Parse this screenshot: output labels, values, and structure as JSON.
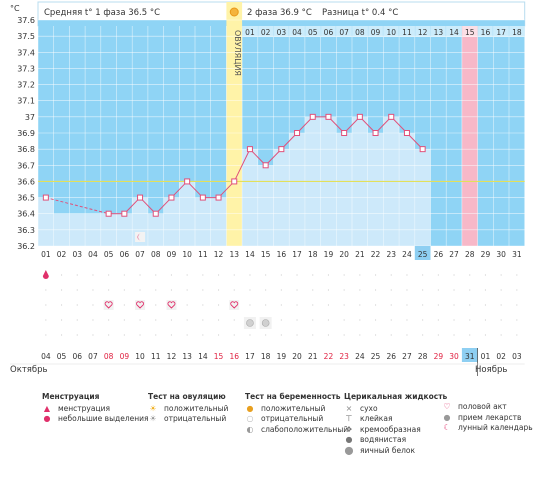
{
  "chart_data": {
    "type": "line",
    "title": "",
    "ylabel": "°C",
    "ylim": [
      36.2,
      37.6
    ],
    "yticks": [
      "36.2",
      "36.3",
      "36.4",
      "36.5",
      "36.6",
      "36.7",
      "36.8",
      "36.9",
      "37",
      "37.1",
      "37.2",
      "37.3",
      "37.4",
      "37.5",
      "37.6"
    ],
    "phase1_avg_label": "Средняя t° 1 фаза 36.5 °C",
    "phase2_label": "2 фаза 36.9 °C",
    "diff_label": "Разница t° 0.4 °C",
    "ovulation_label": "ОВУЛЯЦИЯ",
    "coverline": 36.6,
    "cycle_days_top": [
      "01",
      "02",
      "03",
      "04",
      "05",
      "06",
      "07",
      "08",
      "09",
      "10",
      "11",
      "12",
      "13",
      "14",
      "15",
      "16",
      "17",
      "18"
    ],
    "cycle_days": [
      "01",
      "02",
      "03",
      "04",
      "05",
      "06",
      "07",
      "08",
      "09",
      "10",
      "11",
      "12",
      "13",
      "14",
      "15",
      "16",
      "17",
      "18",
      "19",
      "20",
      "21",
      "22",
      "23",
      "24",
      "25",
      "26",
      "27",
      "28",
      "29",
      "30",
      "31"
    ],
    "dates": [
      "04",
      "05",
      "06",
      "07",
      "08",
      "09",
      "10",
      "11",
      "12",
      "13",
      "14",
      "15",
      "16",
      "17",
      "18",
      "19",
      "20",
      "21",
      "22",
      "23",
      "24",
      "25",
      "26",
      "27",
      "28",
      "29",
      "30",
      "31",
      "01",
      "02",
      "03"
    ],
    "weekend_dates": [
      "08",
      "09",
      "15",
      "16",
      "22",
      "23",
      "29",
      "30"
    ],
    "month_start": "Октябрь",
    "month_end": "Ноябрь",
    "temperatures": [
      36.5,
      null,
      null,
      null,
      36.4,
      36.4,
      36.5,
      36.4,
      36.5,
      36.6,
      36.5,
      36.5,
      36.6,
      36.8,
      36.7,
      36.8,
      36.9,
      37.0,
      37.0,
      36.9,
      37.0,
      36.9,
      37.0,
      36.9,
      36.8,
      null,
      null,
      null,
      null,
      null,
      null
    ],
    "today_day": 25,
    "expected_period_day": 28,
    "ovulation_day": 13,
    "bar_range_days": [
      1,
      25
    ],
    "menstruation_days": [
      1
    ],
    "intercourse_days": [
      5,
      7,
      9,
      13
    ],
    "ovulation_test_negative_days": [
      14,
      15
    ],
    "lunar_calendar_days": [
      7
    ]
  },
  "legend": {
    "menstruation": {
      "title": "Менструация",
      "items": [
        "менструация",
        "небольшие выделения"
      ]
    },
    "ovulation_test": {
      "title": "Тест на овуляцию",
      "items": [
        "положительный",
        "отрицательный"
      ]
    },
    "pregnancy_test": {
      "title": "Тест на беременность",
      "items": [
        "положительный",
        "отрицательный",
        "слабоположительный"
      ]
    },
    "cervical_fluid": {
      "title": "Церикальная жидкость",
      "items": [
        "сухо",
        "клейкая",
        "кремообразная",
        "водянистая",
        "яичный белок"
      ]
    },
    "other": {
      "items": [
        "половой акт",
        "прием лекарств",
        "лунный календарь"
      ]
    }
  },
  "colors": {
    "sky": "#8fd4f5",
    "bar": "#cde9fa",
    "ovulation": "#fff3a8",
    "expected": "#f7b8c8",
    "line": "#e0507a",
    "coverline": "#e3e05a",
    "today": "#8ecff2",
    "weekend": "#e02040"
  }
}
